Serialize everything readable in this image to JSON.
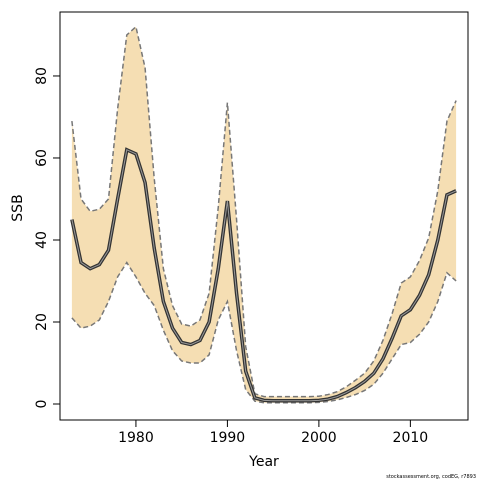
{
  "chart_data": {
    "type": "line",
    "x_label": "Year",
    "y_label": "SSB",
    "footnote": "stockassessment.org, codEG, r7893",
    "x": [
      1973,
      1974,
      1975,
      1976,
      1977,
      1978,
      1979,
      1980,
      1981,
      1982,
      1983,
      1984,
      1985,
      1986,
      1987,
      1988,
      1989,
      1990,
      1991,
      1992,
      1993,
      1994,
      1995,
      1996,
      1997,
      1998,
      1999,
      2000,
      2001,
      2002,
      2003,
      2004,
      2005,
      2006,
      2007,
      2008,
      2009,
      2010,
      2011,
      2012,
      2013,
      2014,
      2015
    ],
    "values": [
      45,
      34.5,
      33,
      34,
      37.5,
      50,
      62,
      61,
      54,
      38,
      25,
      18.5,
      15,
      14.5,
      15.5,
      20,
      33,
      49.5,
      27,
      8,
      1.5,
      0.9,
      0.8,
      0.8,
      0.8,
      0.8,
      0.8,
      0.9,
      1.2,
      1.8,
      2.8,
      4,
      5.5,
      7.5,
      11,
      16,
      21.5,
      23,
      26.5,
      31.5,
      40,
      51,
      52
    ],
    "upper": [
      69,
      50,
      47,
      47.5,
      50,
      72,
      90,
      92,
      82,
      55,
      33,
      24,
      19.5,
      19,
      20.5,
      27,
      48,
      73.5,
      45,
      14,
      2.5,
      1.8,
      1.8,
      1.8,
      1.8,
      1.8,
      1.8,
      1.9,
      2.3,
      3,
      4.2,
      5.8,
      7.5,
      10.5,
      15.5,
      22,
      29.5,
      31,
      35,
      40.5,
      52,
      69,
      74
    ],
    "lower": [
      21,
      18.5,
      19,
      20.5,
      25,
      31,
      34.5,
      31,
      27,
      24,
      18,
      13,
      10.5,
      10,
      10,
      12,
      20.5,
      25,
      13,
      3.5,
      0.7,
      0.3,
      0.3,
      0.3,
      0.3,
      0.3,
      0.3,
      0.4,
      0.6,
      1,
      1.6,
      2.3,
      3.3,
      4.8,
      7.5,
      11,
      14.5,
      15,
      17,
      20,
      25,
      32,
      30
    ],
    "line_color": "#333333",
    "band_color": "#f5deb3",
    "band_edge_color": "#777777",
    "xlim": [
      1971.7,
      2016.3
    ],
    "ylim": [
      -3.9,
      95.6
    ],
    "xticks": [
      1980,
      1990,
      2000,
      2010
    ],
    "yticks": [
      0,
      20,
      40,
      60,
      80
    ]
  }
}
